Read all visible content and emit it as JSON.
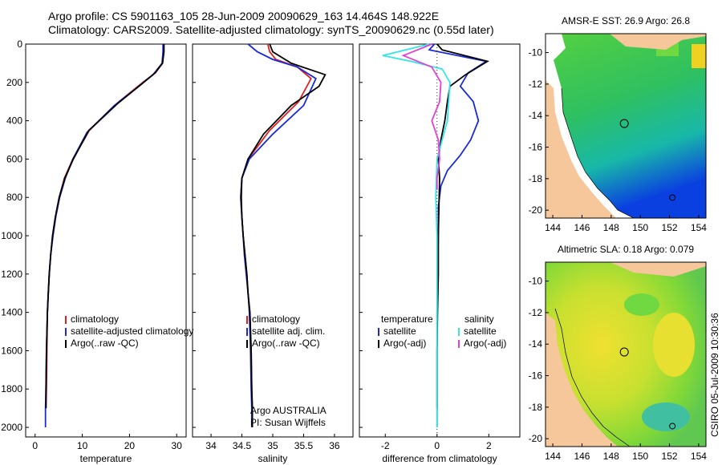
{
  "header": {
    "line1": "Argo profile: CS 5901163_105 28-Jun-2009 20090629_163 14.464S 148.922E",
    "line2": "Climatology: CARS2009. Satellite-adjusted climatology: synTS_20090629.nc (0.55d later)"
  },
  "credit": "CSIRO 05-Jul-2009 10:30:36",
  "colors": {
    "red": "#e02020",
    "blue": "#1a2ad8",
    "black": "#000000",
    "cyan": "#33e5e5",
    "magenta": "#e040d8",
    "land": "#f5c79a"
  },
  "chart_data": [
    {
      "id": "temperature",
      "type": "line",
      "xlabel": "temperature",
      "ylabel": "",
      "xlim": [
        -2,
        32
      ],
      "ylim": [
        2050,
        0
      ],
      "xticks": [
        0,
        10,
        20,
        30
      ],
      "yticks": [
        0,
        200,
        400,
        600,
        800,
        1000,
        1200,
        1400,
        1600,
        1800,
        2000
      ],
      "series": [
        {
          "name": "climatology",
          "color": "#e02020",
          "x": [
            27.2,
            27.2,
            27.0,
            25.5,
            22.8,
            17.8,
            11.5,
            8.0,
            6.2,
            5.1,
            4.3,
            3.7,
            3.3,
            3.0,
            2.8,
            2.6,
            2.5,
            2.4,
            2.3
          ],
          "y": [
            0,
            40,
            100,
            150,
            200,
            300,
            450,
            600,
            700,
            800,
            900,
            1000,
            1100,
            1200,
            1300,
            1400,
            1600,
            1800,
            1900
          ]
        },
        {
          "name": "satellite-adjusted climatology",
          "color": "#1a2ad8",
          "x": [
            27.1,
            27.1,
            26.9,
            25.0,
            22.0,
            16.8,
            11.0,
            8.0,
            6.4,
            5.2,
            4.4,
            3.8,
            3.3,
            3.0,
            2.8,
            2.6,
            2.4,
            2.3,
            2.2,
            2.2
          ],
          "y": [
            0,
            40,
            100,
            160,
            220,
            320,
            460,
            600,
            700,
            800,
            900,
            1000,
            1100,
            1200,
            1300,
            1400,
            1600,
            1800,
            1900,
            2000
          ]
        },
        {
          "name": "Argo(..raw -QC)",
          "color": "#000000",
          "x": [
            27.3,
            27.3,
            27.0,
            25.4,
            22.5,
            17.5,
            11.4,
            8.1,
            6.3,
            5.1,
            4.3,
            3.7,
            3.3,
            3.0,
            2.8,
            2.6,
            2.4,
            2.3,
            2.3
          ],
          "y": [
            0,
            40,
            100,
            150,
            210,
            310,
            450,
            600,
            700,
            800,
            900,
            1000,
            1100,
            1200,
            1300,
            1400,
            1600,
            1800,
            1900
          ]
        }
      ],
      "legend": [
        "climatology",
        "satellite-adjusted climatology",
        "Argo(..raw -QC)"
      ]
    },
    {
      "id": "salinity",
      "type": "line",
      "xlabel": "salinity",
      "ylabel": "",
      "xlim": [
        33.7,
        36.3
      ],
      "ylim": [
        2050,
        0
      ],
      "xticks": [
        34,
        34.5,
        35,
        35.5,
        36
      ],
      "xtick_labels": [
        "34",
        "34.5",
        "35",
        "35.5",
        "36"
      ],
      "series": [
        {
          "name": "climatology",
          "color": "#e02020",
          "x": [
            34.92,
            34.95,
            35.05,
            35.4,
            35.62,
            35.42,
            34.95,
            34.6,
            34.5,
            34.48,
            34.5,
            34.52,
            34.55,
            34.58,
            34.6,
            34.63,
            34.65,
            34.66,
            34.67,
            34.67
          ],
          "y": [
            0,
            40,
            80,
            120,
            180,
            300,
            450,
            600,
            700,
            800,
            900,
            1000,
            1100,
            1200,
            1300,
            1400,
            1600,
            1800,
            1900,
            2000
          ]
        },
        {
          "name": "satellite adj. clim.",
          "color": "#1a2ad8",
          "x": [
            34.6,
            34.75,
            35.0,
            35.4,
            35.7,
            35.5,
            35.0,
            34.62,
            34.5,
            34.48,
            34.5,
            34.52,
            34.54,
            34.57,
            34.6,
            34.62,
            34.64,
            34.65,
            34.66,
            34.66
          ],
          "y": [
            0,
            40,
            80,
            120,
            180,
            320,
            470,
            600,
            700,
            800,
            900,
            1000,
            1100,
            1200,
            1300,
            1400,
            1600,
            1800,
            1900,
            2000
          ]
        },
        {
          "name": "Argo(..raw -QC)",
          "color": "#000000",
          "x": [
            34.95,
            35.0,
            35.3,
            35.85,
            35.75,
            35.3,
            34.85,
            34.6,
            34.5,
            34.49,
            34.5,
            34.52,
            34.55,
            34.58,
            34.6,
            34.63,
            34.65,
            34.66,
            34.67,
            34.67
          ],
          "y": [
            0,
            40,
            100,
            160,
            220,
            320,
            470,
            600,
            700,
            800,
            900,
            1000,
            1100,
            1200,
            1300,
            1400,
            1600,
            1800,
            1900,
            2000
          ]
        }
      ],
      "legend": [
        "climatology",
        "satellite adj. clim.",
        "Argo(..raw -QC)"
      ],
      "annotation": [
        "Argo AUSTRALIA",
        "PI: Susan Wijffels"
      ]
    },
    {
      "id": "difference",
      "type": "line",
      "xlabel": "difference from climatology",
      "ylabel": "",
      "xlim": [
        -3,
        3.2
      ],
      "ylim": [
        2050,
        0
      ],
      "xticks": [
        -2,
        0,
        2
      ],
      "zero_line": true,
      "series": [
        {
          "name": "temperature satellite",
          "color": "#1a2ad8",
          "x": [
            -0.1,
            -0.3,
            1.9,
            1.2,
            0.9,
            1.4,
            1.6,
            1.3,
            0.9,
            0.4,
            0.15,
            0.05,
            0.05,
            0.02,
            0.0,
            0.0,
            0.0,
            0.0
          ],
          "y": [
            0,
            30,
            90,
            150,
            220,
            300,
            400,
            500,
            580,
            660,
            740,
            850,
            1000,
            1200,
            1400,
            1600,
            1800,
            2000
          ]
        },
        {
          "name": "temperature Argo(-adj)",
          "color": "#000000",
          "x": [
            0.0,
            0.2,
            1.95,
            1.1,
            0.5,
            0.4,
            0.3,
            0.15,
            0.05,
            0.1,
            0.08,
            0.05,
            0.05,
            0.02,
            0.0,
            0.0,
            0.0
          ],
          "y": [
            0,
            30,
            90,
            160,
            220,
            300,
            400,
            500,
            600,
            700,
            800,
            1000,
            1200,
            1400,
            1600,
            1800,
            1900
          ]
        },
        {
          "name": "salinity satellite",
          "color": "#33e5e5",
          "x": [
            -0.3,
            -2.1,
            -1.0,
            0.2,
            0.5,
            0.45,
            0.4,
            0.2,
            0.0,
            -0.05,
            0.0,
            0.0,
            0.0,
            0.0,
            0.0
          ],
          "y": [
            0,
            60,
            90,
            130,
            200,
            300,
            400,
            500,
            600,
            800,
            1000,
            1200,
            1500,
            1800,
            2000
          ]
        },
        {
          "name": "salinity Argo(-adj)",
          "color": "#e040d8",
          "x": [
            -0.2,
            -1.3,
            -0.2,
            0.15,
            0.1,
            -0.2,
            0.05,
            0.1,
            0.0,
            0.0
          ],
          "y": [
            0,
            60,
            120,
            200,
            300,
            400,
            500,
            600,
            700,
            760
          ]
        }
      ],
      "legend_left_title": "temperature",
      "legend_left": [
        "satellite",
        "Argo(-adj)"
      ],
      "legend_right_title": "salinity",
      "legend_right": [
        "satellite",
        "Argo(-adj)"
      ]
    },
    {
      "id": "sst_map",
      "type": "heatmap",
      "title": "AMSR-E SST: 26.9  Argo: 26.8",
      "xticks": [
        144,
        146,
        148,
        150,
        152,
        154
      ],
      "yticks": [
        -10,
        -12,
        -14,
        -16,
        -18,
        -20
      ],
      "xlim": [
        143.5,
        154.5
      ],
      "ylim": [
        -20.5,
        -8.8
      ],
      "markers": [
        {
          "lon": 148.9,
          "lat": -14.5
        },
        {
          "lon": 152.2,
          "lat": -19.2
        }
      ]
    },
    {
      "id": "sla_map",
      "type": "heatmap",
      "title": "Altimetric SLA: 0.18  Argo: 0.079",
      "xticks": [
        144,
        146,
        148,
        150,
        152,
        154
      ],
      "yticks": [
        -10,
        -12,
        -14,
        -16,
        -18,
        -20
      ],
      "xlim": [
        143.5,
        154.5
      ],
      "ylim": [
        -20.5,
        -8.8
      ],
      "markers": [
        {
          "lon": 148.9,
          "lat": -14.5
        },
        {
          "lon": 152.2,
          "lat": -19.2
        }
      ]
    }
  ]
}
